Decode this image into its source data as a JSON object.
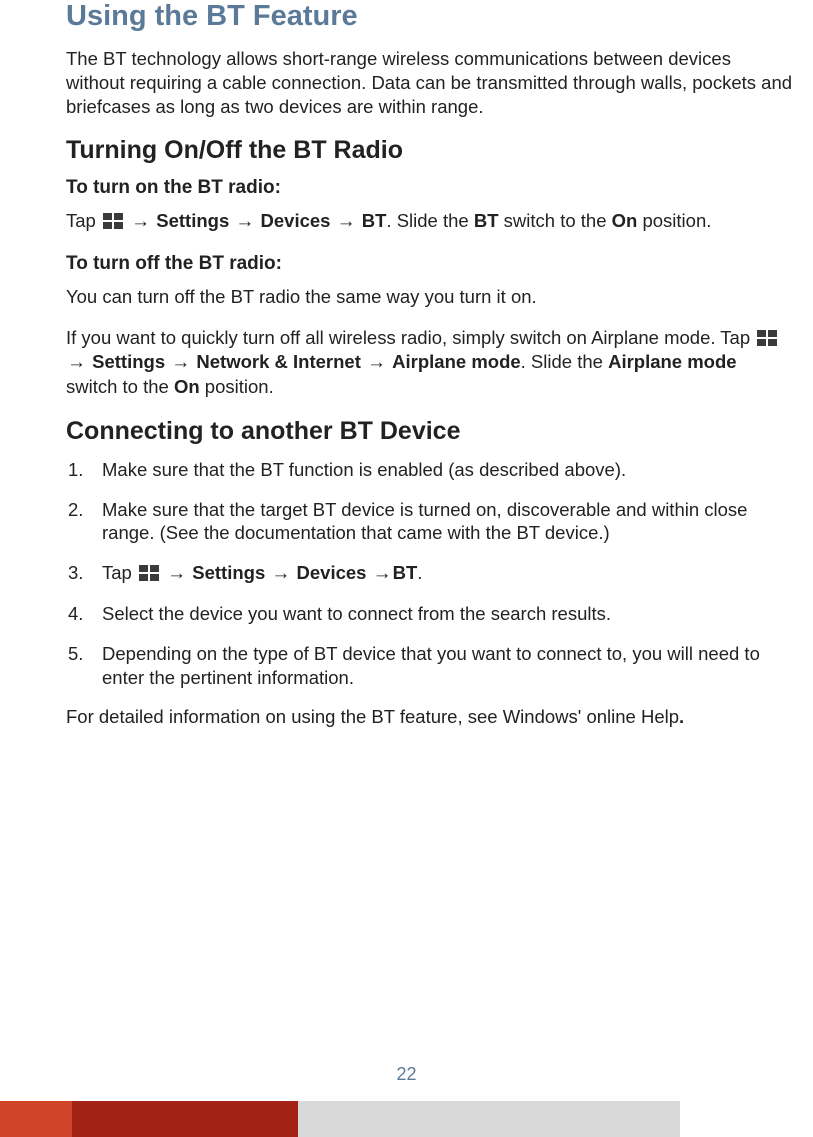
{
  "colors": {
    "h1": "#5b7a99",
    "text": "#222222",
    "bar_orange": "#d0452a",
    "bar_red": "#a22315",
    "bar_gray": "#d9d9d9",
    "background": "#ffffff",
    "win_logo": "#3a3a3a"
  },
  "typography": {
    "family": "Segoe UI",
    "h1_size": 29,
    "h1_weight": 700,
    "h2_size": 25,
    "h2_weight": 700,
    "h3_size": 19,
    "h3_weight": 700,
    "body_size": 18.5,
    "line_height": 1.28
  },
  "title": "Using the BT Feature",
  "intro": "The BT technology allows short-range wireless communications between devices without requiring a cable connection. Data can be transmitted through walls, pockets and briefcases as long as two devices are within range.",
  "section_radio": {
    "heading": "Turning On/Off the BT Radio",
    "on_label": "To turn on the BT radio:",
    "on_pre": "Tap ",
    "arrow": "→",
    "seq1": {
      "a": "Settings",
      "b": "Devices",
      "c": "BT"
    },
    "on_post1": ". Slide the ",
    "on_bt": "BT",
    "on_post2": " switch to the ",
    "on_on": "On",
    "on_post3": " position.",
    "off_label": "To turn off the BT radio:",
    "off_line": "You can turn off the BT radio the same way you turn it on.",
    "airplane_pre": "If you want to quickly turn off all wireless radio, simply switch on Airplane mode. Tap ",
    "seq2": {
      "a": "Settings",
      "b": "Network & Internet",
      "c": "Airplane mode"
    },
    "airplane_post1": ". Slide the ",
    "airplane_bold": "Airplane mode",
    "airplane_post2": " switch to the ",
    "airplane_on": "On",
    "airplane_post3": " position."
  },
  "section_connect": {
    "heading": "Connecting to another BT Device",
    "steps": {
      "s1": "Make sure that the BT function is enabled (as described above).",
      "s2": "Make sure that the target BT device is turned on, discoverable and within close range. (See the documentation that came with the BT device.)",
      "s3_pre": "Tap ",
      "s3_seq": {
        "a": "Settings",
        "b": "Devices",
        "c": "BT"
      },
      "s3_post": ".",
      "s4": "Select the device you want to connect from the search results.",
      "s5": "Depending on the type of BT device that you want to connect to, you will need to enter the pertinent information."
    },
    "closing_pre": "For detailed information on using the BT feature, see Windows' online Help",
    "closing_dot": "."
  },
  "page_number": "22",
  "footer_bars": {
    "orange_width": 72,
    "red_width": 226,
    "gray_width": 382,
    "height": 36
  }
}
